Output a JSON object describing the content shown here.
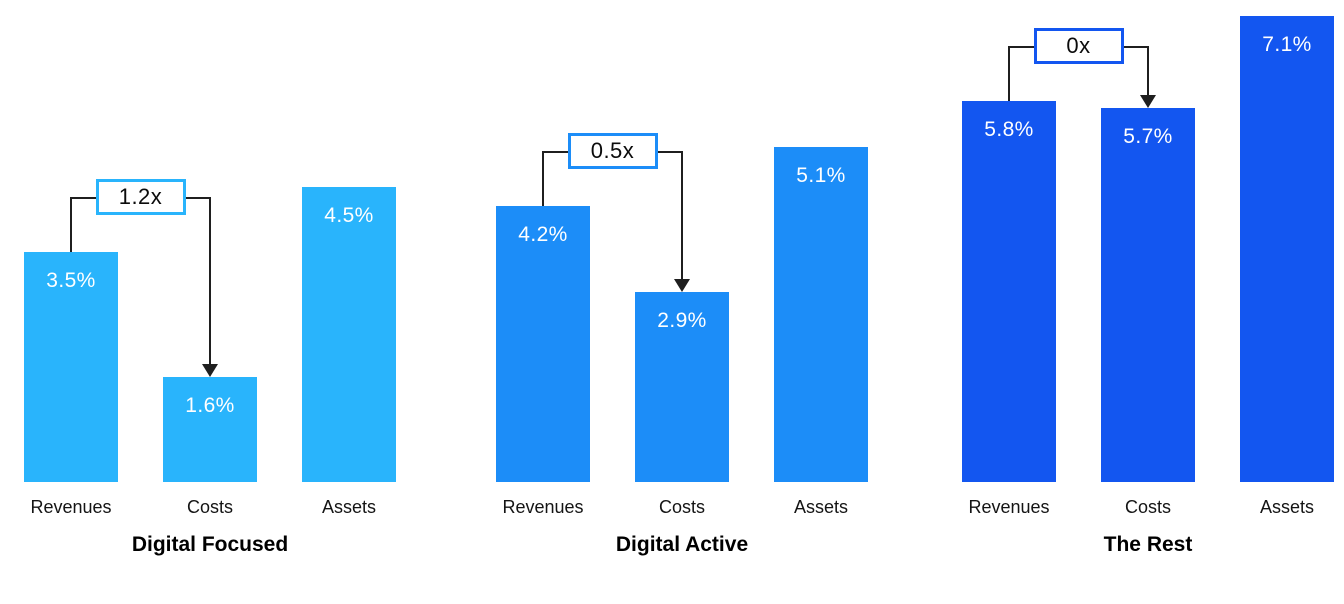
{
  "chart_data": {
    "type": "bar",
    "unit": "%",
    "categories": [
      "Revenues",
      "Costs",
      "Assets"
    ],
    "groups": [
      {
        "title": "Digital Focused",
        "values": [
          3.5,
          1.6,
          4.5
        ],
        "value_labels": [
          "3.5%",
          "1.6%",
          "4.5%"
        ],
        "ratio_label": "1.2x",
        "bar_color": "#29B4FC"
      },
      {
        "title": "Digital Active",
        "values": [
          4.2,
          2.9,
          5.1
        ],
        "value_labels": [
          "4.2%",
          "2.9%",
          "5.1%"
        ],
        "ratio_label": "0.5x",
        "bar_color": "#1C8DF8"
      },
      {
        "title": "The Rest",
        "values": [
          5.8,
          5.7,
          7.1
        ],
        "value_labels": [
          "5.8%",
          "5.7%",
          "7.1%"
        ],
        "ratio_label": "0x",
        "bar_color": "#1356F0"
      }
    ],
    "annotation_meaning": "ratio bracket with arrow from Revenues bar to Costs bar",
    "value_label_color": "#FFFFFF",
    "connector_color": "#1F1F1F",
    "background_color": "#FFFFFF",
    "ylim": [
      0,
      7.1
    ],
    "grid": "off",
    "legend": "none"
  }
}
